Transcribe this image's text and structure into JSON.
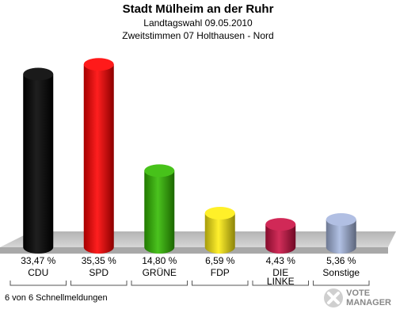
{
  "header": {
    "title": "Stadt Mülheim an der Ruhr",
    "subtitle1": "Landtagswahl 09.05.2010",
    "subtitle2": "Zweitstimmen 07 Holthausen - Nord"
  },
  "footer": {
    "text": "6 von 6 Schnellmeldungen"
  },
  "logo": {
    "line1": "VOTE",
    "line2": "MANAGER",
    "icon": "ballot-cross-icon"
  },
  "chart_data": {
    "type": "bar",
    "categories": [
      "CDU",
      "SPD",
      "GRÜNE",
      "FDP",
      "DIE LINKE",
      "Sonstige"
    ],
    "values": [
      33.47,
      35.35,
      14.8,
      6.59,
      4.43,
      5.36
    ],
    "value_labels": [
      "33,47 %",
      "35,35 %",
      "14,80 %",
      "6,59 %",
      "4,43 %",
      "5,36 %"
    ],
    "colors": [
      "#000000",
      "#ff0000",
      "#33bb00",
      "#ffee11",
      "#cc1144",
      "#a8b8e0"
    ],
    "ylim": [
      0,
      36
    ],
    "grid": false
  }
}
